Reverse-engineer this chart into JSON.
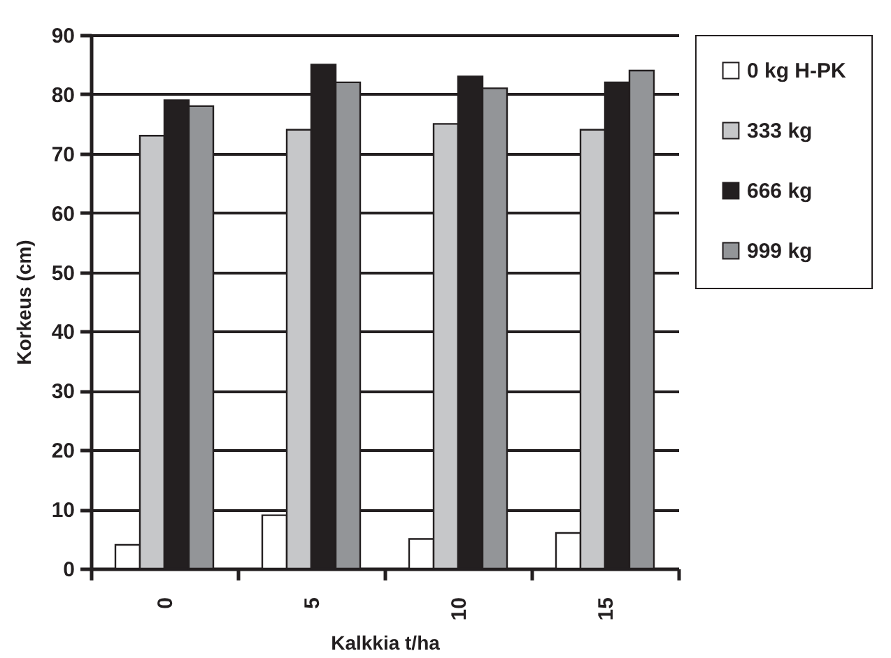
{
  "chart_data": {
    "type": "bar",
    "xlabel": "Kalkkia t/ha",
    "ylabel": "Korkeus (cm)",
    "categories": [
      "0",
      "5",
      "10",
      "15"
    ],
    "series": [
      {
        "name": "0 kg H-PK",
        "color": "#ffffff",
        "values": [
          4,
          9,
          5,
          6
        ]
      },
      {
        "name": "333 kg",
        "color": "#c6c7c9",
        "values": [
          73,
          74,
          75,
          74
        ]
      },
      {
        "name": "666 kg",
        "color": "#231f20",
        "values": [
          79,
          85,
          83,
          82
        ]
      },
      {
        "name": "999 kg",
        "color": "#939598",
        "values": [
          78,
          82,
          81,
          84
        ]
      }
    ],
    "ylim": [
      0,
      90
    ],
    "yticks": [
      0,
      10,
      20,
      30,
      40,
      50,
      60,
      70,
      80,
      90
    ],
    "grid": "y",
    "legend": "right"
  }
}
